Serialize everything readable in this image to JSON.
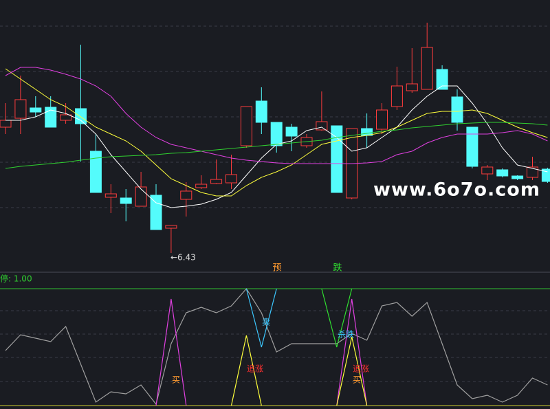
{
  "watermark": "www.6o7o.com",
  "chart_data": [
    {
      "type": "candlestick",
      "categories": [
        null,
        null,
        null,
        null,
        null,
        null,
        null,
        null,
        null,
        null,
        null,
        null,
        null,
        null,
        null,
        null,
        null,
        null,
        null,
        null,
        null,
        null,
        null,
        null,
        null,
        null,
        null,
        null,
        null,
        null,
        null,
        null,
        null,
        null,
        null,
        null,
        null
      ],
      "open": [
        8.26,
        8.39,
        8.54,
        8.55,
        8.36,
        8.53,
        7.91,
        7.24,
        7.23,
        7.11,
        7.27,
        6.79,
        7.21,
        7.38,
        7.44,
        7.45,
        7.99,
        8.64,
        8.33,
        8.26,
        7.99,
        8.22,
        8.28,
        7.23,
        8.24,
        8.23,
        8.56,
        8.79,
        8.81,
        9.1,
        8.7,
        8.26,
        7.58,
        7.64,
        7.55,
        7.53,
        7.65
      ],
      "high": [
        8.61,
        9.01,
        8.71,
        8.71,
        8.61,
        9.46,
        8.16,
        7.43,
        7.36,
        7.61,
        7.43,
        6.83,
        7.46,
        7.56,
        7.79,
        7.86,
        8.56,
        8.84,
        8.33,
        8.31,
        8.16,
        8.78,
        8.28,
        8.24,
        8.46,
        8.61,
        9.14,
        9.41,
        9.78,
        9.16,
        8.81,
        8.26,
        7.71,
        7.66,
        7.56,
        7.83,
        7.67
      ],
      "low": [
        8.16,
        8.16,
        8.41,
        8.26,
        8.31,
        7.76,
        7.31,
        7.01,
        6.89,
        7.11,
        6.77,
        6.43,
        6.96,
        7.36,
        7.43,
        7.36,
        7.96,
        8.16,
        7.89,
        7.91,
        7.96,
        8.21,
        7.31,
        7.21,
        7.96,
        8.16,
        8.51,
        8.76,
        8.81,
        8.81,
        8.21,
        7.66,
        7.49,
        7.53,
        7.49,
        7.49,
        7.45
      ],
      "close": [
        8.36,
        8.66,
        8.48,
        8.26,
        8.44,
        8.31,
        7.31,
        7.29,
        7.15,
        7.39,
        6.77,
        6.83,
        7.33,
        7.43,
        7.5,
        7.57,
        8.56,
        8.33,
        7.99,
        8.13,
        8.11,
        8.34,
        7.31,
        8.24,
        8.14,
        8.51,
        8.86,
        8.89,
        9.42,
        8.81,
        8.33,
        7.69,
        7.68,
        7.55,
        7.51,
        7.68,
        7.47
      ],
      "up_color": "#ff3c3c",
      "down_color": "#54fcfc",
      "lines": [
        {
          "color": "#ffffff",
          "values": [
            8.36,
            8.36,
            8.41,
            8.51,
            8.46,
            8.36,
            8.16,
            7.86,
            7.61,
            7.36,
            7.16,
            7.09,
            7.11,
            7.14,
            7.21,
            7.31,
            7.56,
            7.81,
            8.01,
            8.06,
            8.21,
            8.26,
            8.11,
            7.91,
            7.96,
            8.11,
            8.26,
            8.51,
            8.71,
            8.86,
            8.86,
            8.61,
            8.31,
            7.96,
            7.71,
            7.66,
            7.61
          ]
        },
        {
          "color": "#ffff3c",
          "values": [
            9.11,
            8.96,
            8.81,
            8.66,
            8.56,
            8.41,
            8.26,
            8.16,
            8.06,
            7.91,
            7.71,
            7.51,
            7.41,
            7.31,
            7.26,
            7.26,
            7.41,
            7.53,
            7.61,
            7.71,
            7.86,
            8.01,
            8.06,
            8.11,
            8.14,
            8.18,
            8.26,
            8.36,
            8.46,
            8.49,
            8.49,
            8.51,
            8.46,
            8.36,
            8.26,
            8.18,
            8.11
          ]
        },
        {
          "color": "#e040e0",
          "values": [
            9.01,
            9.13,
            9.13,
            9.09,
            9.03,
            8.96,
            8.86,
            8.71,
            8.46,
            8.26,
            8.11,
            8.01,
            7.96,
            7.91,
            7.86,
            7.81,
            7.78,
            7.76,
            7.74,
            7.73,
            7.73,
            7.73,
            7.73,
            7.73,
            7.74,
            7.76,
            7.86,
            7.91,
            8.03,
            8.11,
            8.16,
            8.16,
            8.16,
            8.18,
            8.21,
            8.16,
            8.06
          ]
        },
        {
          "color": "#30d030",
          "values": [
            7.66,
            7.69,
            7.71,
            7.73,
            7.75,
            7.78,
            7.81,
            7.83,
            7.84,
            7.85,
            7.86,
            7.88,
            7.89,
            7.91,
            7.93,
            7.95,
            7.97,
            7.99,
            8.01,
            8.03,
            8.05,
            8.07,
            8.11,
            8.14,
            8.17,
            8.2,
            8.22,
            8.25,
            8.27,
            8.29,
            8.31,
            8.32,
            8.33,
            8.33,
            8.32,
            8.31,
            8.29
          ]
        }
      ],
      "ylim": [
        6.16,
        10.11
      ],
      "annotations": [
        {
          "text": "←6.43",
          "color": "#dddddd"
        },
        {
          "text": "预",
          "color": "#ff9a30"
        },
        {
          "text": "跌",
          "color": "#30e030"
        }
      ]
    },
    {
      "type": "line",
      "title": "停: 1.00",
      "title_color": "#30d030",
      "series": [
        {
          "color": "#a0a0a0",
          "values": [
            80,
            103,
            98,
            93,
            115,
            60,
            5,
            20,
            17,
            30,
            2,
            90,
            135,
            143,
            135,
            145,
            170,
            135,
            78,
            90,
            90,
            90,
            90,
            105,
            95,
            145,
            150,
            130,
            150,
            90,
            30,
            10,
            15,
            5,
            15,
            40,
            30
          ]
        },
        {
          "color": "#e040e0",
          "values": [
            null,
            null,
            null,
            null,
            null,
            null,
            null,
            null,
            null,
            null,
            0,
            155,
            0,
            null,
            null,
            null,
            null,
            null,
            null,
            null,
            null,
            null,
            0,
            155,
            0,
            null,
            null,
            null,
            null,
            null,
            null,
            null,
            null,
            null,
            null,
            null,
            null
          ]
        },
        {
          "color": "#ffff3c",
          "values": [
            null,
            null,
            null,
            null,
            null,
            null,
            null,
            null,
            null,
            null,
            null,
            null,
            null,
            null,
            null,
            0,
            102,
            0,
            null,
            null,
            null,
            null,
            0,
            100,
            0,
            null,
            null,
            null,
            null,
            null,
            null,
            null,
            null,
            null,
            null,
            null,
            null
          ]
        },
        {
          "color": "#3cc8ff",
          "values": [
            null,
            null,
            null,
            null,
            null,
            null,
            null,
            null,
            null,
            null,
            null,
            null,
            null,
            null,
            null,
            null,
            170,
            85,
            170,
            null,
            null,
            null,
            null,
            null,
            null,
            null,
            null,
            null,
            null,
            null,
            null,
            null,
            null,
            null,
            null,
            null,
            null
          ]
        },
        {
          "color": "#30e030",
          "values": [
            null,
            null,
            null,
            null,
            null,
            null,
            null,
            null,
            null,
            null,
            null,
            null,
            null,
            null,
            null,
            null,
            null,
            null,
            null,
            null,
            null,
            170,
            85,
            170,
            null,
            null,
            null,
            null,
            null,
            null,
            null,
            null,
            null,
            null,
            null,
            null,
            null
          ]
        }
      ],
      "ylim": [
        0,
        170
      ],
      "annotations": [
        {
          "text": "买",
          "color": "#ff9a30"
        },
        {
          "text": "追涨",
          "color": "#ff3030"
        },
        {
          "text": "卖",
          "color": "#3cc8ff"
        },
        {
          "text": "杀跌",
          "color": "#3cc8ff"
        },
        {
          "text": "追涨",
          "color": "#ff3030"
        },
        {
          "text": "买",
          "color": "#ff9a30"
        }
      ]
    }
  ]
}
